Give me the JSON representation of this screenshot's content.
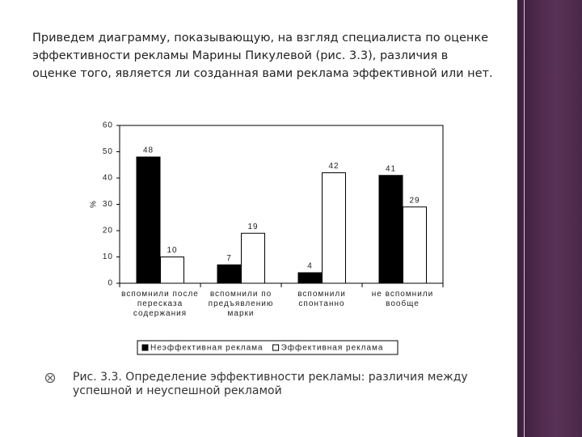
{
  "slide": {
    "intro": "Приведем диаграмму, показывающую, на взгляд специалиста по оценке эффективности рекламы Марины Пикулевой (рис. 3.3), различия в оценке того, является ли созданная вами реклама эффективной или нет.",
    "caption": "Рис. 3.3. Определение эффективности рекламы: различия между успешной и неуспешной рекламой"
  },
  "chart_data": {
    "type": "bar",
    "y_label": "%",
    "categories": [
      "вспомнили после пересказа содержания",
      "вспомнили по предъявлению марки",
      "вспомнили спонтанно",
      "не вспомнили вообще"
    ],
    "series": [
      {
        "name": "Неэффективная реклама",
        "color": "#000000",
        "values": [
          48,
          7,
          4,
          41
        ]
      },
      {
        "name": "Эффективная реклама",
        "color": "#ffffff",
        "values": [
          10,
          19,
          42,
          29
        ]
      }
    ],
    "ylim": [
      0,
      60
    ],
    "yticks": [
      0,
      10,
      20,
      30,
      40,
      50,
      60
    ],
    "grid": false,
    "legend": "bottom"
  }
}
